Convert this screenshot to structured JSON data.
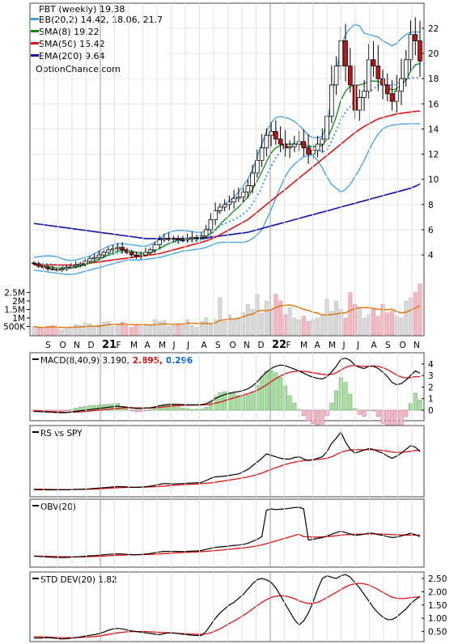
{
  "price": {
    "ticker_label": "PBT (weekly) 19.38",
    "legend": [
      {
        "label": "BB(20,2) 14.42, 18.06, 21.7",
        "color": "#3aa0e8"
      },
      {
        "label": "SMA(8) 19.22",
        "color": "#0a8a0a"
      },
      {
        "label": "SMA(50) 15.42",
        "color": "#e01010"
      },
      {
        "label": "EMA(200) 9.64",
        "color": "#1010b0"
      }
    ],
    "watermark": "OptionChance.com",
    "yaxis_ticks": [
      4,
      6,
      8,
      10,
      12,
      14,
      16,
      18,
      20,
      22
    ],
    "ylim": [
      2.4,
      23.6
    ],
    "volume_ticks": [
      "2.5M",
      "2M",
      "1.5M",
      "1M",
      "500K"
    ]
  },
  "time_axis": {
    "labels": [
      "S",
      "O",
      "N",
      "D",
      "21",
      "F",
      "M",
      "A",
      "M",
      "J",
      "J",
      "A",
      "S",
      "O",
      "N",
      "D",
      "22",
      "F",
      "M",
      "A",
      "M",
      "J",
      "J",
      "A",
      "S",
      "O",
      "N"
    ],
    "bold_labels": [
      "21",
      "22"
    ]
  },
  "macd": {
    "title": "MACD(8,40,9) 3.190,",
    "signal_value": "2.895,",
    "signal_color": "#e01010",
    "hist_value": "0.296",
    "hist_color": "#1060d0",
    "yaxis_ticks": [
      "4",
      "3",
      "2",
      "1",
      "0"
    ]
  },
  "rs": {
    "title": "RS vs SPY"
  },
  "obv": {
    "title": "OBV(20)"
  },
  "std": {
    "title": "STD DEV(20) 1.82",
    "yaxis_ticks": [
      "2.50",
      "2.00",
      "1.50",
      "1.00",
      "0.50"
    ]
  },
  "chart_data": {
    "type": "line",
    "close": [
      3.3,
      3.1,
      3.0,
      2.9,
      2.85,
      2.8,
      2.9,
      3.0,
      3.1,
      3.2,
      3.3,
      3.5,
      3.7,
      3.8,
      4.0,
      4.2,
      4.4,
      4.5,
      4.6,
      4.4,
      4.2,
      4.0,
      3.9,
      4.0,
      4.2,
      4.4,
      4.8,
      5.2,
      5.3,
      5.3,
      5.3,
      5.2,
      5.2,
      5.3,
      5.4,
      5.4,
      5.5,
      6.0,
      6.8,
      7.5,
      7.8,
      8.0,
      8.2,
      8.5,
      8.6,
      9.0,
      9.5,
      10.5,
      11.5,
      12.5,
      13.5,
      13.8,
      13.2,
      12.8,
      12.5,
      12.6,
      12.8,
      13.0,
      12.5,
      12.0,
      12.3,
      12.8,
      13.2,
      15.0,
      17.5,
      19.0,
      21.0,
      19.0,
      17.5,
      15.5,
      16.5,
      17.0,
      19.5,
      19.0,
      18.0,
      17.5,
      16.8,
      16.2,
      17.0,
      18.0,
      19.5,
      21.5,
      21.0,
      19.4
    ],
    "sma8": [
      3.3,
      3.2,
      3.13,
      3.07,
      3.02,
      2.98,
      2.95,
      2.95,
      2.95,
      3.0,
      3.1,
      3.2,
      3.35,
      3.5,
      3.65,
      3.85,
      4.0,
      4.15,
      4.3,
      4.35,
      4.35,
      4.3,
      4.2,
      4.15,
      4.1,
      4.15,
      4.3,
      4.5,
      4.7,
      4.9,
      5.05,
      5.2,
      5.25,
      5.25,
      5.3,
      5.3,
      5.35,
      5.45,
      5.7,
      6.0,
      6.4,
      6.8,
      7.1,
      7.5,
      7.8,
      8.2,
      8.6,
      9.2,
      9.9,
      10.6,
      11.4,
      12.1,
      12.5,
      12.7,
      12.8,
      12.8,
      12.8,
      12.8,
      12.7,
      12.6,
      12.6,
      12.6,
      12.7,
      13.2,
      14.0,
      15.0,
      16.3,
      17.0,
      17.4,
      17.4,
      17.5,
      17.6,
      17.8,
      17.8,
      17.8,
      17.6,
      17.3,
      17.1,
      17.2,
      17.5,
      17.9,
      18.6,
      19.1,
      19.2
    ],
    "sma50": [
      3.2,
      3.2,
      3.2,
      3.2,
      3.2,
      3.2,
      3.2,
      3.2,
      3.2,
      3.2,
      3.25,
      3.3,
      3.35,
      3.4,
      3.45,
      3.5,
      3.55,
      3.6,
      3.65,
      3.7,
      3.75,
      3.8,
      3.85,
      3.9,
      3.95,
      4.0,
      4.05,
      4.1,
      4.2,
      4.3,
      4.4,
      4.5,
      4.6,
      4.7,
      4.8,
      4.9,
      5.0,
      5.1,
      5.25,
      5.4,
      5.6,
      5.8,
      6.0,
      6.2,
      6.4,
      6.6,
      6.8,
      7.1,
      7.4,
      7.7,
      8.0,
      8.3,
      8.6,
      8.9,
      9.2,
      9.5,
      9.8,
      10.1,
      10.4,
      10.7,
      11.0,
      11.3,
      11.6,
      11.9,
      12.2,
      12.5,
      12.8,
      13.1,
      13.4,
      13.7,
      13.95,
      14.2,
      14.4,
      14.6,
      14.8,
      14.9,
      15.0,
      15.1,
      15.2,
      15.25,
      15.3,
      15.35,
      15.4,
      15.42
    ],
    "ema200": [
      6.5,
      6.45,
      6.4,
      6.35,
      6.3,
      6.25,
      6.2,
      6.15,
      6.1,
      6.05,
      6.0,
      5.95,
      5.9,
      5.85,
      5.8,
      5.75,
      5.7,
      5.65,
      5.6,
      5.55,
      5.5,
      5.45,
      5.4,
      5.35,
      5.3,
      5.3,
      5.3,
      5.3,
      5.3,
      5.3,
      5.3,
      5.3,
      5.3,
      5.3,
      5.3,
      5.3,
      5.3,
      5.35,
      5.4,
      5.45,
      5.5,
      5.55,
      5.6,
      5.65,
      5.7,
      5.75,
      5.8,
      5.9,
      6.0,
      6.1,
      6.2,
      6.3,
      6.4,
      6.5,
      6.6,
      6.7,
      6.8,
      6.9,
      7.0,
      7.1,
      7.2,
      7.3,
      7.4,
      7.5,
      7.6,
      7.7,
      7.8,
      7.9,
      8.0,
      8.1,
      8.2,
      8.3,
      8.4,
      8.5,
      8.6,
      8.7,
      8.8,
      8.9,
      9.0,
      9.1,
      9.2,
      9.3,
      9.45,
      9.64
    ],
    "bb_upper": [
      3.8,
      3.85,
      3.9,
      3.92,
      3.9,
      3.85,
      3.7,
      3.6,
      3.55,
      3.6,
      3.7,
      3.8,
      3.9,
      4.1,
      4.3,
      4.5,
      4.7,
      4.8,
      4.9,
      4.9,
      4.85,
      4.8,
      4.75,
      4.7,
      4.7,
      4.8,
      5.0,
      5.3,
      5.6,
      5.8,
      5.9,
      5.95,
      5.95,
      5.9,
      5.85,
      5.8,
      5.8,
      5.9,
      6.3,
      7.0,
      7.6,
      8.0,
      8.3,
      8.6,
      9.0,
      9.5,
      10.0,
      10.8,
      11.8,
      12.8,
      13.8,
      14.5,
      14.9,
      15.0,
      14.9,
      14.8,
      14.6,
      14.3,
      13.9,
      13.5,
      13.3,
      13.3,
      13.4,
      14.5,
      16.5,
      18.5,
      20.5,
      21.5,
      22.0,
      22.3,
      22.2,
      21.6,
      21.5,
      21.4,
      21.3,
      21.0,
      20.8,
      20.6,
      20.8,
      21.2,
      21.5,
      21.7,
      21.7,
      21.7
    ],
    "bb_lower": [
      2.8,
      2.75,
      2.7,
      2.65,
      2.6,
      2.55,
      2.5,
      2.45,
      2.45,
      2.5,
      2.6,
      2.7,
      2.8,
      2.9,
      3.0,
      3.1,
      3.2,
      3.3,
      3.4,
      3.5,
      3.6,
      3.6,
      3.6,
      3.6,
      3.65,
      3.7,
      3.75,
      3.8,
      3.9,
      4.0,
      4.1,
      4.2,
      4.3,
      4.35,
      4.4,
      4.45,
      4.5,
      4.6,
      4.75,
      4.9,
      5.0,
      5.0,
      5.0,
      5.0,
      5.0,
      5.0,
      5.1,
      5.3,
      5.6,
      6.0,
      6.8,
      7.6,
      8.5,
      9.4,
      10.2,
      10.8,
      11.2,
      11.5,
      11.8,
      11.9,
      11.9,
      11.5,
      10.9,
      10.2,
      9.6,
      9.3,
      9.0,
      9.2,
      9.6,
      10.2,
      10.8,
      11.5,
      12.3,
      13.0,
      13.6,
      14.0,
      14.2,
      14.3,
      14.35,
      14.4,
      14.4,
      14.42,
      14.42,
      14.42
    ],
    "bb_mid": [
      3.3,
      3.3,
      3.3,
      3.28,
      3.25,
      3.2,
      3.1,
      3.05,
      3.0,
      3.05,
      3.15,
      3.25,
      3.35,
      3.5,
      3.65,
      3.8,
      3.95,
      4.05,
      4.15,
      4.2,
      4.22,
      4.2,
      4.18,
      4.15,
      4.17,
      4.25,
      4.37,
      4.55,
      4.75,
      4.9,
      5.0,
      5.07,
      5.12,
      5.12,
      5.12,
      5.12,
      5.15,
      5.25,
      5.5,
      5.95,
      6.3,
      6.5,
      6.65,
      6.8,
      7.0,
      7.25,
      7.55,
      8.05,
      8.7,
      9.4,
      10.3,
      11.05,
      11.7,
      12.2,
      12.55,
      12.8,
      12.9,
      12.9,
      12.85,
      12.7,
      12.6,
      12.4,
      12.15,
      12.35,
      13.05,
      13.9,
      14.75,
      15.35,
      15.8,
      16.25,
      16.5,
      16.55,
      16.9,
      17.2,
      17.45,
      17.5,
      17.5,
      17.45,
      17.6,
      17.8,
      17.95,
      18.06,
      18.06,
      18.06
    ],
    "volume_millions": [
      0.5,
      0.4,
      0.45,
      0.5,
      0.55,
      0.4,
      0.3,
      0.35,
      0.5,
      0.6,
      0.55,
      0.7,
      0.65,
      0.5,
      0.6,
      0.75,
      0.8,
      0.5,
      0.6,
      0.75,
      0.55,
      0.45,
      0.6,
      0.5,
      0.55,
      0.6,
      0.9,
      0.8,
      0.85,
      0.5,
      0.55,
      0.6,
      0.65,
      0.9,
      0.55,
      0.45,
      0.8,
      1.0,
      0.6,
      0.9,
      2.2,
      0.8,
      1.2,
      0.9,
      1.0,
      1.3,
      1.8,
      1.5,
      2.4,
      1.3,
      2.0,
      1.5,
      2.4,
      2.0,
      1.2,
      1.6,
      1.0,
      0.9,
      1.1,
      0.8,
      0.9,
      1.0,
      1.2,
      2.1,
      1.4,
      2.0,
      1.5,
      1.0,
      2.5,
      1.8,
      1.6,
      1.0,
      1.2,
      1.5,
      1.1,
      1.8,
      1.3,
      1.4,
      1.1,
      1.0,
      2.0,
      2.2,
      2.5,
      3.0
    ],
    "macd": [
      -0.1,
      -0.12,
      -0.14,
      -0.16,
      -0.18,
      -0.2,
      -0.22,
      -0.2,
      -0.15,
      -0.1,
      -0.05,
      0.0,
      0.05,
      0.1,
      0.15,
      0.2,
      0.25,
      0.3,
      0.35,
      0.3,
      0.25,
      0.2,
      0.15,
      0.15,
      0.18,
      0.2,
      0.28,
      0.38,
      0.45,
      0.5,
      0.52,
      0.5,
      0.48,
      0.47,
      0.46,
      0.47,
      0.48,
      0.55,
      0.75,
      1.0,
      1.2,
      1.35,
      1.45,
      1.55,
      1.6,
      1.7,
      1.85,
      2.1,
      2.45,
      2.9,
      3.3,
      3.6,
      3.8,
      3.9,
      3.85,
      3.7,
      3.55,
      3.4,
      3.2,
      3.0,
      2.85,
      2.75,
      2.7,
      2.9,
      3.3,
      3.8,
      4.4,
      4.5,
      4.3,
      3.9,
      3.7,
      3.6,
      3.8,
      3.8,
      3.6,
      3.3,
      2.9,
      2.4,
      2.2,
      2.3,
      2.6,
      3.0,
      3.4,
      3.19
    ],
    "macd_signal": [
      -0.05,
      -0.07,
      -0.09,
      -0.11,
      -0.13,
      -0.15,
      -0.17,
      -0.18,
      -0.17,
      -0.16,
      -0.14,
      -0.11,
      -0.08,
      -0.04,
      0.0,
      0.04,
      0.08,
      0.12,
      0.16,
      0.19,
      0.21,
      0.21,
      0.2,
      0.19,
      0.19,
      0.19,
      0.21,
      0.24,
      0.29,
      0.33,
      0.37,
      0.4,
      0.42,
      0.43,
      0.44,
      0.44,
      0.45,
      0.47,
      0.52,
      0.6,
      0.7,
      0.82,
      0.94,
      1.06,
      1.18,
      1.3,
      1.42,
      1.56,
      1.73,
      1.94,
      2.18,
      2.45,
      2.72,
      2.96,
      3.15,
      3.28,
      3.35,
      3.38,
      3.36,
      3.31,
      3.24,
      3.17,
      3.1,
      3.06,
      3.1,
      3.24,
      3.46,
      3.7,
      3.84,
      3.85,
      3.82,
      3.78,
      3.8,
      3.82,
      3.78,
      3.68,
      3.52,
      3.28,
      3.04,
      2.87,
      2.78,
      2.81,
      2.91,
      2.895
    ],
    "rs_vs_spy": [
      0.1,
      0.08,
      0.07,
      0.06,
      0.05,
      0.06,
      0.07,
      0.08,
      0.1,
      0.12,
      0.14,
      0.16,
      0.2,
      0.25,
      0.3,
      0.35,
      0.4,
      0.45,
      0.5,
      0.48,
      0.45,
      0.4,
      0.38,
      0.42,
      0.48,
      0.55,
      0.65,
      0.8,
      0.9,
      0.88,
      0.85,
      0.88,
      0.9,
      0.95,
      0.98,
      1.0,
      1.05,
      1.3,
      1.6,
      1.8,
      1.85,
      1.9,
      2.0,
      2.1,
      2.2,
      2.5,
      2.8,
      3.3,
      3.8,
      4.3,
      4.9,
      4.7,
      4.5,
      4.3,
      4.2,
      4.2,
      4.4,
      4.5,
      4.2,
      4.0,
      4.1,
      4.3,
      4.5,
      5.2,
      6.3,
      7.0,
      7.8,
      6.5,
      5.5,
      5.0,
      5.2,
      5.4,
      5.6,
      5.5,
      5.2,
      5.0,
      4.6,
      4.3,
      4.6,
      5.0,
      5.5,
      6.0,
      5.8,
      5.2
    ],
    "rs_ma": [
      0.15,
      0.14,
      0.13,
      0.12,
      0.11,
      0.1,
      0.1,
      0.1,
      0.1,
      0.11,
      0.12,
      0.13,
      0.15,
      0.17,
      0.2,
      0.23,
      0.27,
      0.3,
      0.34,
      0.37,
      0.39,
      0.4,
      0.41,
      0.42,
      0.43,
      0.45,
      0.48,
      0.52,
      0.57,
      0.62,
      0.67,
      0.71,
      0.75,
      0.79,
      0.82,
      0.85,
      0.88,
      0.93,
      1.0,
      1.08,
      1.17,
      1.27,
      1.37,
      1.47,
      1.57,
      1.68,
      1.8,
      1.95,
      2.12,
      2.32,
      2.55,
      2.8,
      3.03,
      3.25,
      3.45,
      3.63,
      3.78,
      3.9,
      3.98,
      4.05,
      4.1,
      4.15,
      4.2,
      4.3,
      4.5,
      4.8,
      5.1,
      5.3,
      5.4,
      5.45,
      5.45,
      5.45,
      5.45,
      5.45,
      5.4,
      5.35,
      5.25,
      5.15,
      5.1,
      5.1,
      5.15,
      5.25,
      5.35,
      5.4
    ],
    "obv_millions": [
      0,
      -0.2,
      -0.4,
      -0.6,
      -0.8,
      -0.9,
      -1.0,
      -0.9,
      -0.7,
      -0.5,
      -0.3,
      0.0,
      0.3,
      0.5,
      0.8,
      1.1,
      1.4,
      1.6,
      1.8,
      1.6,
      1.4,
      1.2,
      1.1,
      1.3,
      1.6,
      2.0,
      2.6,
      3.2,
      3.6,
      3.6,
      3.6,
      3.5,
      3.4,
      3.6,
      3.8,
      3.9,
      4.2,
      5.0,
      5.8,
      6.5,
      6.8,
      7.2,
      7.6,
      8.0,
      8.2,
      8.8,
      9.5,
      11.0,
      12.5,
      14.5,
      34.0,
      35.0,
      34.5,
      34.8,
      35.0,
      35.5,
      36.0,
      36.2,
      35.0,
      12.0,
      12.5,
      13.2,
      13.8,
      15.0,
      16.2,
      17.5,
      18.5,
      17.5,
      16.5,
      15.5,
      15.8,
      16.3,
      17.2,
      16.8,
      16.0,
      15.5,
      14.5,
      13.8,
      14.2,
      15.0,
      16.0,
      17.0,
      16.0,
      14.5
    ],
    "obv_ma": [
      0.1,
      0.05,
      0.0,
      -0.1,
      -0.2,
      -0.3,
      -0.4,
      -0.45,
      -0.5,
      -0.5,
      -0.45,
      -0.4,
      -0.3,
      -0.2,
      -0.05,
      0.1,
      0.3,
      0.5,
      0.7,
      0.85,
      0.95,
      1.05,
      1.1,
      1.15,
      1.25,
      1.35,
      1.5,
      1.7,
      1.95,
      2.2,
      2.4,
      2.6,
      2.75,
      2.9,
      3.05,
      3.2,
      3.35,
      3.6,
      3.9,
      4.2,
      4.5,
      4.8,
      5.15,
      5.5,
      5.85,
      6.2,
      6.6,
      7.1,
      7.7,
      8.4,
      9.3,
      10.3,
      11.3,
      12.3,
      13.3,
      14.3,
      15.3,
      16.3,
      14.5,
      14.3,
      14.2,
      14.2,
      14.3,
      14.5,
      14.8,
      15.2,
      15.6,
      15.9,
      16.1,
      16.2,
      16.3,
      16.4,
      16.5,
      16.5,
      16.45,
      16.35,
      16.2,
      16.0,
      15.85,
      15.75,
      15.7,
      15.7,
      15.65,
      15.6
    ],
    "std_dev": [
      0.25,
      0.25,
      0.26,
      0.27,
      0.26,
      0.24,
      0.22,
      0.23,
      0.25,
      0.27,
      0.3,
      0.33,
      0.36,
      0.38,
      0.42,
      0.48,
      0.55,
      0.6,
      0.62,
      0.6,
      0.56,
      0.52,
      0.5,
      0.48,
      0.45,
      0.43,
      0.4,
      0.38,
      0.42,
      0.45,
      0.45,
      0.42,
      0.4,
      0.38,
      0.36,
      0.35,
      0.35,
      0.5,
      0.75,
      1.0,
      1.2,
      1.35,
      1.5,
      1.6,
      1.75,
      1.9,
      2.1,
      2.3,
      2.45,
      2.5,
      2.45,
      2.35,
      2.15,
      1.85,
      1.55,
      1.25,
      0.95,
      0.75,
      0.9,
      1.2,
      1.6,
      2.1,
      2.5,
      2.6,
      2.55,
      2.5,
      2.6,
      2.65,
      2.55,
      2.35,
      2.15,
      1.9,
      1.65,
      1.4,
      1.2,
      1.05,
      0.95,
      0.95,
      1.05,
      1.2,
      1.35,
      1.55,
      1.7,
      1.82
    ],
    "std_ma": [
      0.3,
      0.3,
      0.3,
      0.29,
      0.28,
      0.27,
      0.27,
      0.27,
      0.27,
      0.27,
      0.28,
      0.29,
      0.3,
      0.31,
      0.33,
      0.36,
      0.39,
      0.42,
      0.45,
      0.47,
      0.49,
      0.5,
      0.5,
      0.5,
      0.5,
      0.49,
      0.48,
      0.47,
      0.46,
      0.45,
      0.44,
      0.43,
      0.42,
      0.41,
      0.4,
      0.4,
      0.39,
      0.41,
      0.45,
      0.52,
      0.6,
      0.7,
      0.8,
      0.9,
      1.0,
      1.1,
      1.22,
      1.35,
      1.48,
      1.6,
      1.7,
      1.78,
      1.83,
      1.85,
      1.84,
      1.8,
      1.74,
      1.66,
      1.6,
      1.56,
      1.56,
      1.6,
      1.68,
      1.78,
      1.88,
      1.98,
      2.08,
      2.18,
      2.26,
      2.3,
      2.32,
      2.3,
      2.25,
      2.17,
      2.08,
      1.98,
      1.88,
      1.8,
      1.75,
      1.74,
      1.75,
      1.78,
      1.8,
      1.8
    ]
  }
}
